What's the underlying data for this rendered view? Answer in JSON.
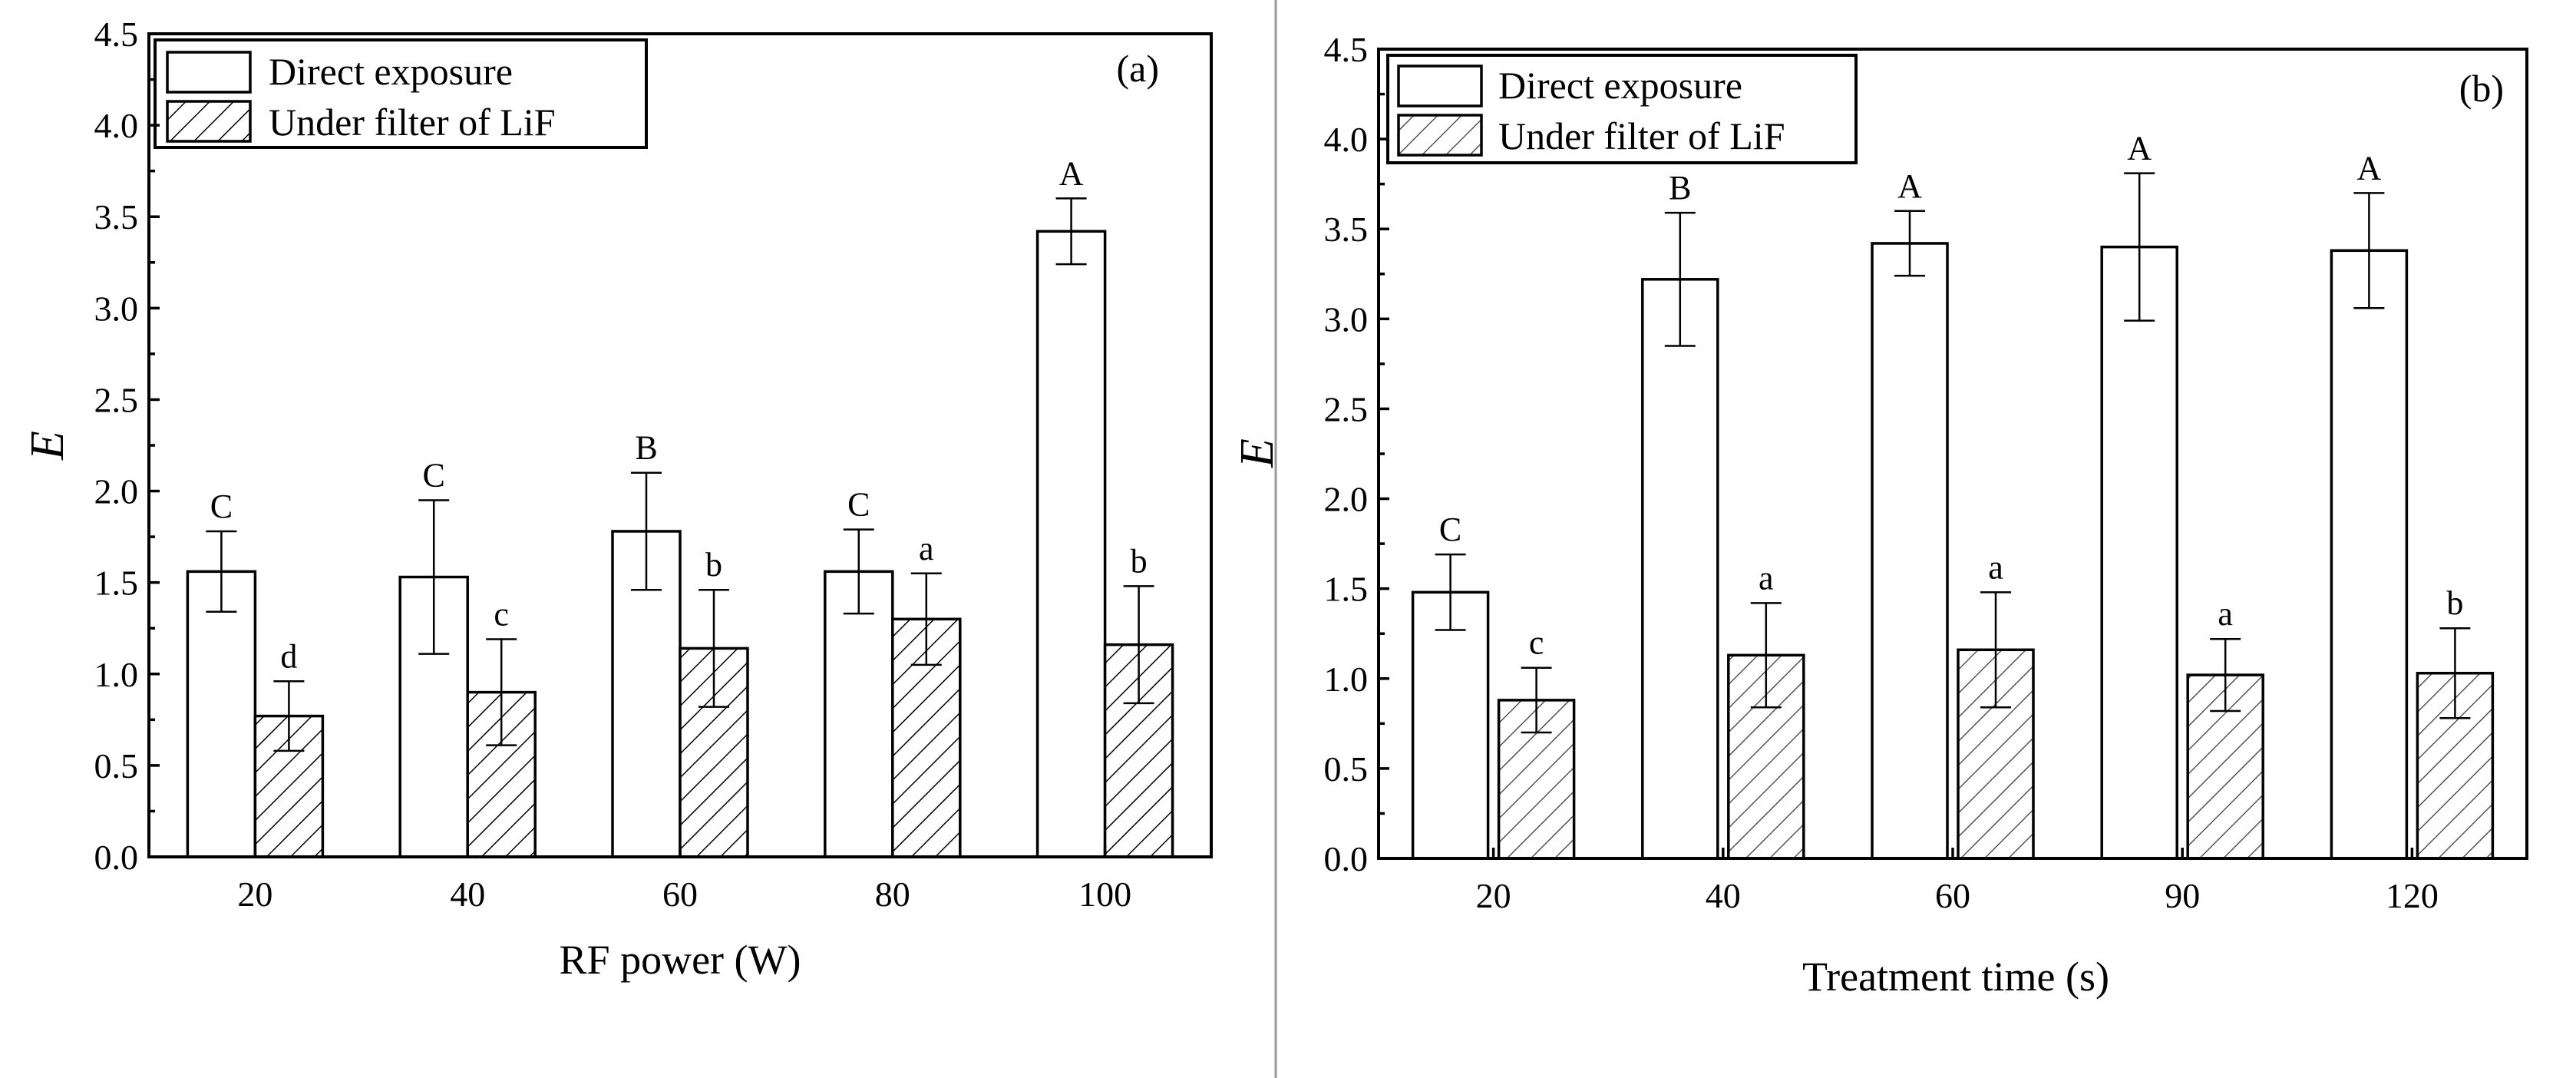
{
  "chart_data": [
    {
      "type": "bar",
      "panel": "(a)",
      "xlabel": "RF power (W)",
      "ylabel": "E",
      "ylim": [
        0,
        4.5
      ],
      "yticks": [
        "0.0",
        "0.5",
        "1.0",
        "1.5",
        "2.0",
        "2.5",
        "3.0",
        "3.5",
        "4.0",
        "4.5"
      ],
      "categories": [
        "20",
        "40",
        "60",
        "80",
        "100"
      ],
      "legend_position": "top-left",
      "series": [
        {
          "name": "Direct exposure",
          "pattern": "open",
          "values": [
            1.56,
            1.53,
            1.78,
            1.56,
            3.42
          ],
          "errors": [
            0.22,
            0.42,
            0.32,
            0.23,
            0.18
          ],
          "labels": [
            "C",
            "C",
            "B",
            "C",
            "A"
          ]
        },
        {
          "name": "Under filter of LiF",
          "pattern": "hatched",
          "values": [
            0.77,
            0.9,
            1.14,
            1.3,
            1.16
          ],
          "errors": [
            0.19,
            0.29,
            0.32,
            0.25,
            0.32
          ],
          "labels": [
            "d",
            "c",
            "b",
            "a",
            "b"
          ]
        }
      ]
    },
    {
      "type": "bar",
      "panel": "(b)",
      "xlabel": "Treatment time (s)",
      "ylabel": "E",
      "ylim": [
        0,
        4.5
      ],
      "yticks": [
        "0.0",
        "0.5",
        "1.0",
        "1.5",
        "2.0",
        "2.5",
        "3.0",
        "3.5",
        "4.0",
        "4.5"
      ],
      "categories": [
        "20",
        "40",
        "60",
        "90",
        "120"
      ],
      "legend_position": "top-left",
      "series": [
        {
          "name": "Direct exposure",
          "pattern": "open",
          "values": [
            1.48,
            3.22,
            3.42,
            3.4,
            3.38
          ],
          "errors": [
            0.21,
            0.37,
            0.18,
            0.41,
            0.32
          ],
          "labels": [
            "C",
            "B",
            "A",
            "A",
            "A"
          ]
        },
        {
          "name": "Under filter of LiF",
          "pattern": "hatched",
          "values": [
            0.88,
            1.13,
            1.16,
            1.02,
            1.03
          ],
          "errors": [
            0.18,
            0.29,
            0.32,
            0.2,
            0.25
          ],
          "labels": [
            "c",
            "a",
            "a",
            "a",
            "b"
          ]
        }
      ]
    }
  ]
}
